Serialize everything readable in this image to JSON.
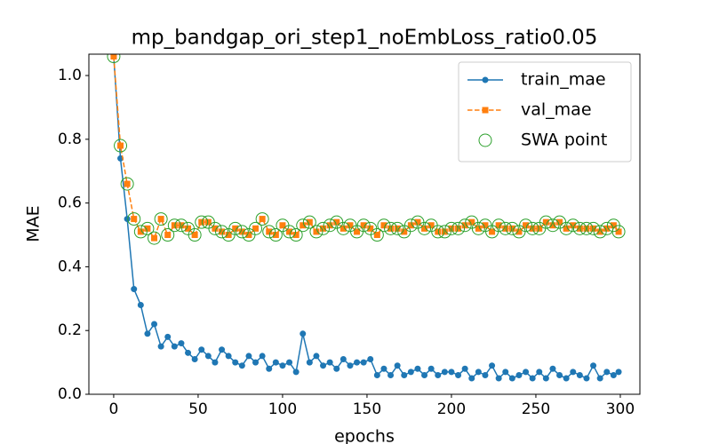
{
  "chart_data": {
    "type": "line",
    "title": "mp_bandgap_ori_step1_noEmbLoss_ratio0.05",
    "x_label": "epochs",
    "y_label": "MAE",
    "x": [
      0,
      4,
      8,
      12,
      16,
      20,
      24,
      28,
      32,
      36,
      40,
      44,
      48,
      52,
      56,
      60,
      64,
      68,
      72,
      76,
      80,
      84,
      88,
      92,
      96,
      100,
      104,
      108,
      112,
      116,
      120,
      124,
      128,
      132,
      136,
      140,
      144,
      148,
      152,
      156,
      160,
      164,
      168,
      172,
      176,
      180,
      184,
      188,
      192,
      196,
      200,
      204,
      208,
      212,
      216,
      220,
      224,
      228,
      232,
      236,
      240,
      244,
      248,
      252,
      256,
      260,
      264,
      268,
      272,
      276,
      280,
      284,
      288,
      292,
      296,
      299
    ],
    "series": [
      {
        "name": "train_mae",
        "color": "#1f77b4",
        "linestyle": "solid",
        "marker": "circle",
        "values": [
          1.06,
          0.74,
          0.55,
          0.33,
          0.28,
          0.19,
          0.22,
          0.15,
          0.18,
          0.15,
          0.16,
          0.13,
          0.11,
          0.14,
          0.12,
          0.1,
          0.14,
          0.12,
          0.1,
          0.09,
          0.12,
          0.1,
          0.12,
          0.08,
          0.1,
          0.09,
          0.1,
          0.07,
          0.19,
          0.1,
          0.12,
          0.09,
          0.1,
          0.08,
          0.11,
          0.09,
          0.1,
          0.1,
          0.11,
          0.06,
          0.08,
          0.06,
          0.09,
          0.06,
          0.07,
          0.08,
          0.06,
          0.08,
          0.06,
          0.07,
          0.07,
          0.06,
          0.08,
          0.05,
          0.07,
          0.06,
          0.09,
          0.05,
          0.07,
          0.05,
          0.06,
          0.07,
          0.05,
          0.07,
          0.05,
          0.08,
          0.06,
          0.05,
          0.07,
          0.06,
          0.05,
          0.09,
          0.05,
          0.07,
          0.06,
          0.07
        ]
      },
      {
        "name": "val_mae",
        "color": "#ff7f0e",
        "linestyle": "dashed",
        "marker": "square",
        "values": [
          1.06,
          0.78,
          0.66,
          0.55,
          0.51,
          0.52,
          0.49,
          0.55,
          0.5,
          0.53,
          0.53,
          0.52,
          0.5,
          0.54,
          0.54,
          0.52,
          0.51,
          0.5,
          0.52,
          0.51,
          0.5,
          0.52,
          0.55,
          0.51,
          0.5,
          0.53,
          0.51,
          0.5,
          0.53,
          0.54,
          0.51,
          0.52,
          0.53,
          0.54,
          0.52,
          0.53,
          0.51,
          0.53,
          0.52,
          0.5,
          0.53,
          0.52,
          0.52,
          0.51,
          0.53,
          0.54,
          0.52,
          0.53,
          0.51,
          0.51,
          0.52,
          0.52,
          0.53,
          0.54,
          0.52,
          0.53,
          0.51,
          0.53,
          0.52,
          0.52,
          0.51,
          0.53,
          0.52,
          0.52,
          0.54,
          0.53,
          0.54,
          0.52,
          0.53,
          0.52,
          0.52,
          0.52,
          0.51,
          0.52,
          0.53,
          0.51
        ]
      },
      {
        "name": "SWA point",
        "color": "#2ca02c",
        "linestyle": "none",
        "marker": "hollow-circle",
        "values": [
          1.06,
          0.78,
          0.66,
          0.55,
          0.51,
          0.52,
          0.49,
          0.55,
          0.5,
          0.53,
          0.53,
          0.52,
          0.5,
          0.54,
          0.54,
          0.52,
          0.51,
          0.5,
          0.52,
          0.51,
          0.5,
          0.52,
          0.55,
          0.51,
          0.5,
          0.53,
          0.51,
          0.5,
          0.53,
          0.54,
          0.51,
          0.52,
          0.53,
          0.54,
          0.52,
          0.53,
          0.51,
          0.53,
          0.52,
          0.5,
          0.53,
          0.52,
          0.52,
          0.51,
          0.53,
          0.54,
          0.52,
          0.53,
          0.51,
          0.51,
          0.52,
          0.52,
          0.53,
          0.54,
          0.52,
          0.53,
          0.51,
          0.53,
          0.52,
          0.52,
          0.51,
          0.53,
          0.52,
          0.52,
          0.54,
          0.53,
          0.54,
          0.52,
          0.53,
          0.52,
          0.52,
          0.52,
          0.51,
          0.52,
          0.53,
          0.51
        ]
      }
    ],
    "xlim": [
      -14.7,
      311.6
    ],
    "xticks": [
      0,
      50,
      100,
      150,
      200,
      250,
      300
    ],
    "ylim": [
      0,
      1.067
    ],
    "yticks": [
      {
        "value": 0,
        "label": "0.0"
      },
      0.2,
      0.4,
      0.6,
      0.8,
      {
        "value": 1,
        "label": "1.0"
      }
    ],
    "grid": false,
    "legend": "upper right"
  }
}
